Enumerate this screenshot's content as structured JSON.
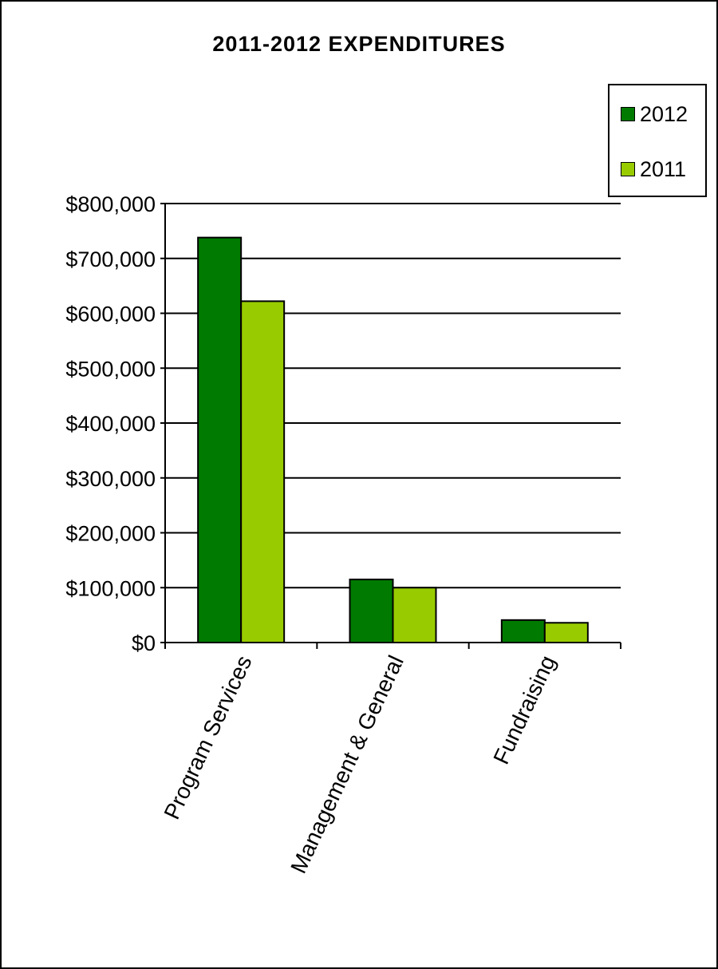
{
  "chart_data": {
    "type": "bar",
    "title": "2011-2012 EXPENDITURES",
    "xlabel": "",
    "ylabel": "",
    "categories": [
      "Program Services",
      "Management & General",
      "Fundraising"
    ],
    "series": [
      {
        "name": "2012",
        "values": [
          738000,
          115000,
          41000
        ],
        "color": "#007A00"
      },
      {
        "name": "2011",
        "values": [
          622000,
          100000,
          36000
        ],
        "color": "#99CC00"
      }
    ],
    "ylim": [
      0,
      800000
    ],
    "yticks": [
      0,
      100000,
      200000,
      300000,
      400000,
      500000,
      600000,
      700000,
      800000
    ],
    "ytick_labels": [
      "$0",
      "$100,000",
      "$200,000",
      "$300,000",
      "$400,000",
      "$500,000",
      "$600,000",
      "$700,000",
      "$800,000"
    ],
    "grid": true,
    "legend": "top-right"
  }
}
